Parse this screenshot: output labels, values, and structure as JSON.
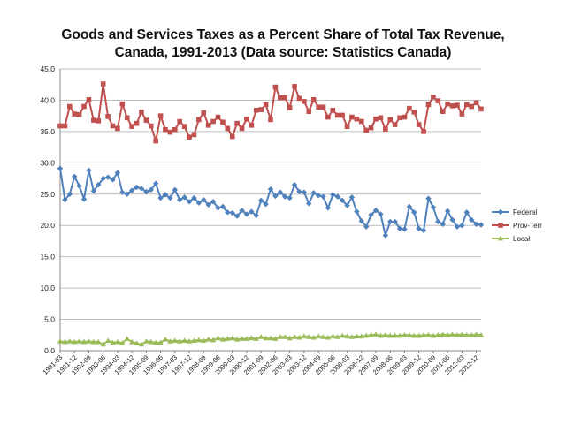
{
  "chart_data": {
    "type": "line",
    "title_line1": "Goods and Services Taxes as a Percent Share of Total Tax Revenue,",
    "title_line2": "Canada, 1991-2013 (Data source: Statistics Canada)",
    "xlabel": "",
    "ylabel": "",
    "ylim": [
      0,
      45
    ],
    "yticks": [
      "0.0",
      "5.0",
      "10.0",
      "15.0",
      "20.0",
      "25.0",
      "30.0",
      "35.0",
      "40.0",
      "45.0"
    ],
    "x_tick_labels": [
      "1991-03",
      "1991-12",
      "1992-09",
      "1993-06",
      "1994-03",
      "1994-12",
      "1995-09",
      "1996-06",
      "1997-03",
      "1997-12",
      "1998-09",
      "1999-06",
      "2000-03",
      "2000-12",
      "2001-09",
      "2002-06",
      "2003-03",
      "2003-12",
      "2004-09",
      "2005-06",
      "2006-03",
      "2006-12",
      "2007-09",
      "2008-06",
      "2009-03",
      "2009-12",
      "2010-09",
      "2011-06",
      "2012-03",
      "2012-12"
    ],
    "legend_position": "right",
    "series": [
      {
        "name": "Federal",
        "color": "#4f81bd",
        "marker": "diamond",
        "values": [
          29.1,
          24.1,
          25.0,
          27.8,
          26.3,
          24.2,
          28.8,
          25.5,
          26.5,
          27.5,
          27.7,
          27.3,
          28.4,
          25.3,
          25.0,
          25.6,
          26.1,
          25.9,
          25.4,
          25.7,
          26.7,
          24.4,
          24.9,
          24.4,
          25.7,
          24.1,
          24.5,
          23.8,
          24.4,
          23.6,
          24.1,
          23.3,
          23.8,
          22.8,
          23.0,
          22.1,
          22.0,
          21.5,
          22.4,
          21.8,
          22.2,
          21.6,
          24.0,
          23.4,
          25.8,
          24.7,
          25.3,
          24.6,
          24.4,
          26.5,
          25.4,
          25.3,
          23.5,
          25.2,
          24.8,
          24.6,
          22.8,
          24.9,
          24.6,
          24.0,
          23.2,
          24.5,
          22.2,
          20.7,
          19.8,
          21.7,
          22.4,
          21.8,
          18.4,
          20.6,
          20.6,
          19.5,
          19.4,
          23.0,
          22.1,
          19.5,
          19.2,
          24.3,
          22.9,
          20.6,
          20.2,
          22.3,
          20.9,
          19.8,
          20.0,
          22.1,
          20.9,
          20.2,
          20.1
        ]
      },
      {
        "name": "Prov-Terr",
        "color": "#c0504d",
        "marker": "square",
        "values": [
          35.9,
          35.9,
          39.0,
          37.8,
          37.7,
          39.0,
          40.1,
          36.8,
          36.7,
          42.6,
          37.4,
          35.9,
          35.5,
          39.4,
          37.2,
          35.8,
          36.3,
          38.1,
          36.8,
          35.9,
          33.5,
          37.5,
          35.3,
          34.9,
          35.3,
          36.6,
          35.8,
          34.1,
          34.5,
          36.9,
          38.0,
          36.0,
          36.6,
          37.3,
          36.5,
          35.5,
          34.2,
          36.3,
          35.5,
          37.0,
          36.0,
          38.4,
          38.5,
          39.3,
          36.9,
          42.1,
          40.4,
          40.4,
          38.8,
          42.2,
          40.3,
          39.8,
          38.2,
          40.1,
          38.9,
          38.9,
          37.3,
          38.4,
          37.6,
          37.6,
          35.8,
          37.3,
          37.0,
          36.6,
          35.2,
          35.6,
          37.0,
          37.2,
          35.4,
          36.9,
          36.1,
          37.2,
          37.3,
          38.7,
          38.1,
          36.1,
          35.0,
          39.3,
          40.5,
          39.9,
          38.2,
          39.4,
          39.1,
          39.2,
          37.8,
          39.3,
          39.0,
          39.6,
          38.6
        ]
      },
      {
        "name": "Local",
        "color": "#9bbb59",
        "marker": "triangle",
        "values": [
          1.5,
          1.4,
          1.5,
          1.4,
          1.5,
          1.4,
          1.5,
          1.4,
          1.4,
          1.0,
          1.6,
          1.3,
          1.4,
          1.2,
          1.9,
          1.4,
          1.2,
          1.0,
          1.5,
          1.4,
          1.3,
          1.3,
          1.8,
          1.5,
          1.6,
          1.5,
          1.6,
          1.5,
          1.6,
          1.7,
          1.6,
          1.8,
          1.7,
          2.0,
          1.8,
          1.9,
          2.0,
          1.8,
          1.9,
          1.9,
          2.0,
          1.9,
          2.2,
          2.0,
          2.0,
          1.9,
          2.2,
          2.2,
          2.0,
          2.2,
          2.1,
          2.3,
          2.2,
          2.1,
          2.3,
          2.2,
          2.1,
          2.3,
          2.2,
          2.4,
          2.3,
          2.2,
          2.3,
          2.3,
          2.4,
          2.5,
          2.6,
          2.4,
          2.5,
          2.4,
          2.4,
          2.4,
          2.5,
          2.5,
          2.4,
          2.4,
          2.5,
          2.5,
          2.4,
          2.5,
          2.6,
          2.5,
          2.6,
          2.5,
          2.6,
          2.5,
          2.5,
          2.6,
          2.5
        ]
      }
    ]
  }
}
